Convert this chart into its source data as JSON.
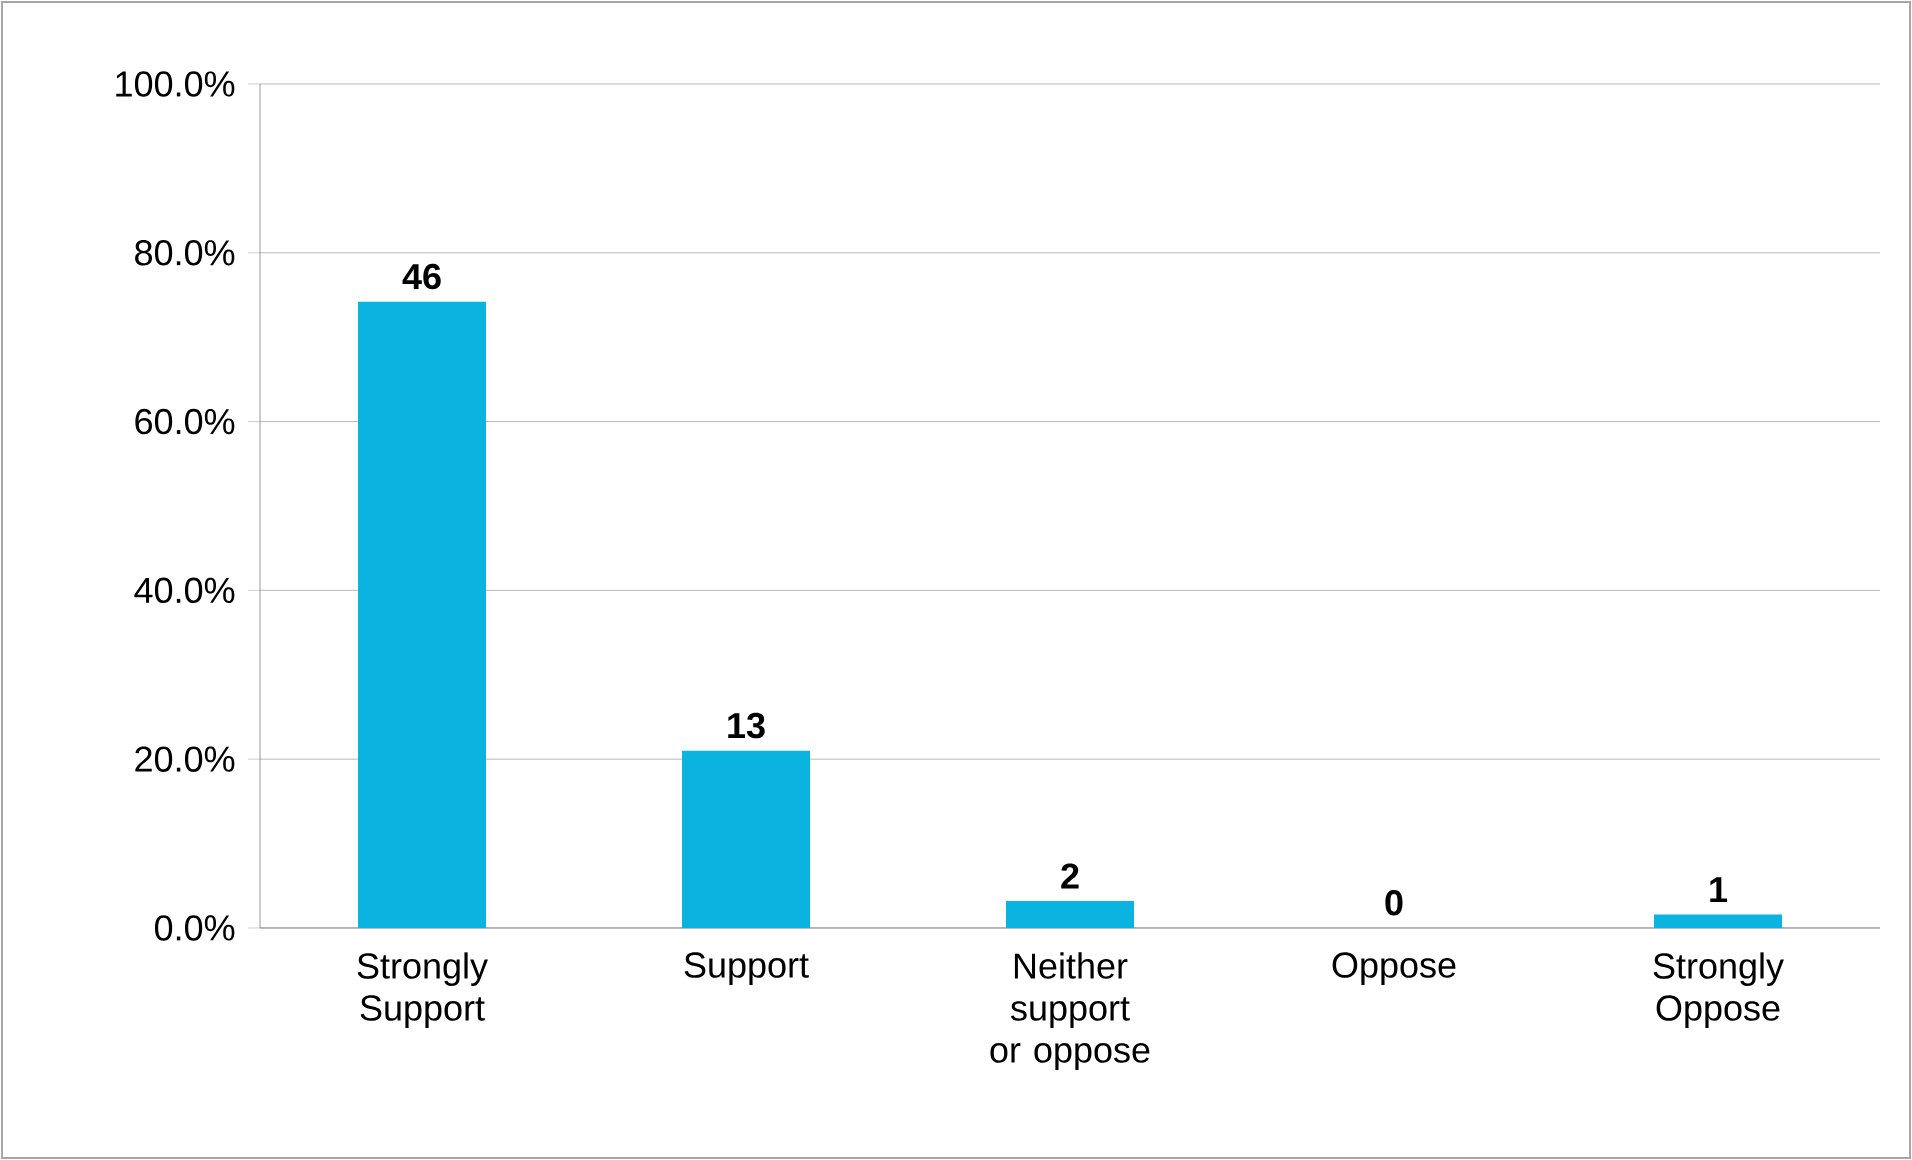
{
  "chart_data": {
    "type": "bar",
    "categories": [
      "Strongly Support",
      "Support",
      "Neither support or oppose",
      "Oppose",
      "Strongly Oppose"
    ],
    "values": [
      74.2,
      21.0,
      3.2,
      0,
      1.6
    ],
    "annotations": [
      {
        "text": "46",
        "x": "Strongly Support",
        "y": 74.2
      },
      {
        "text": "13",
        "x": "Support",
        "y": 21.0
      },
      {
        "text": "2",
        "x": "Neither support or oppose",
        "y": 3.2
      },
      {
        "text": "0",
        "x": "Oppose",
        "y": 0
      },
      {
        "text": "1",
        "x": "Strongly Oppose",
        "y": 1.6
      }
    ],
    "color": "#0bb4e0",
    "ylim": [
      0,
      100
    ],
    "yticks": [
      {
        "value": 0,
        "label": "0.0%"
      },
      {
        "value": 20,
        "label": "20.0%"
      },
      {
        "value": 40,
        "label": "40.0%"
      },
      {
        "value": 60,
        "label": "60.0%"
      },
      {
        "value": 80,
        "label": "80.0%"
      },
      {
        "value": 100,
        "label": "100.0%"
      }
    ],
    "grid": "y"
  }
}
